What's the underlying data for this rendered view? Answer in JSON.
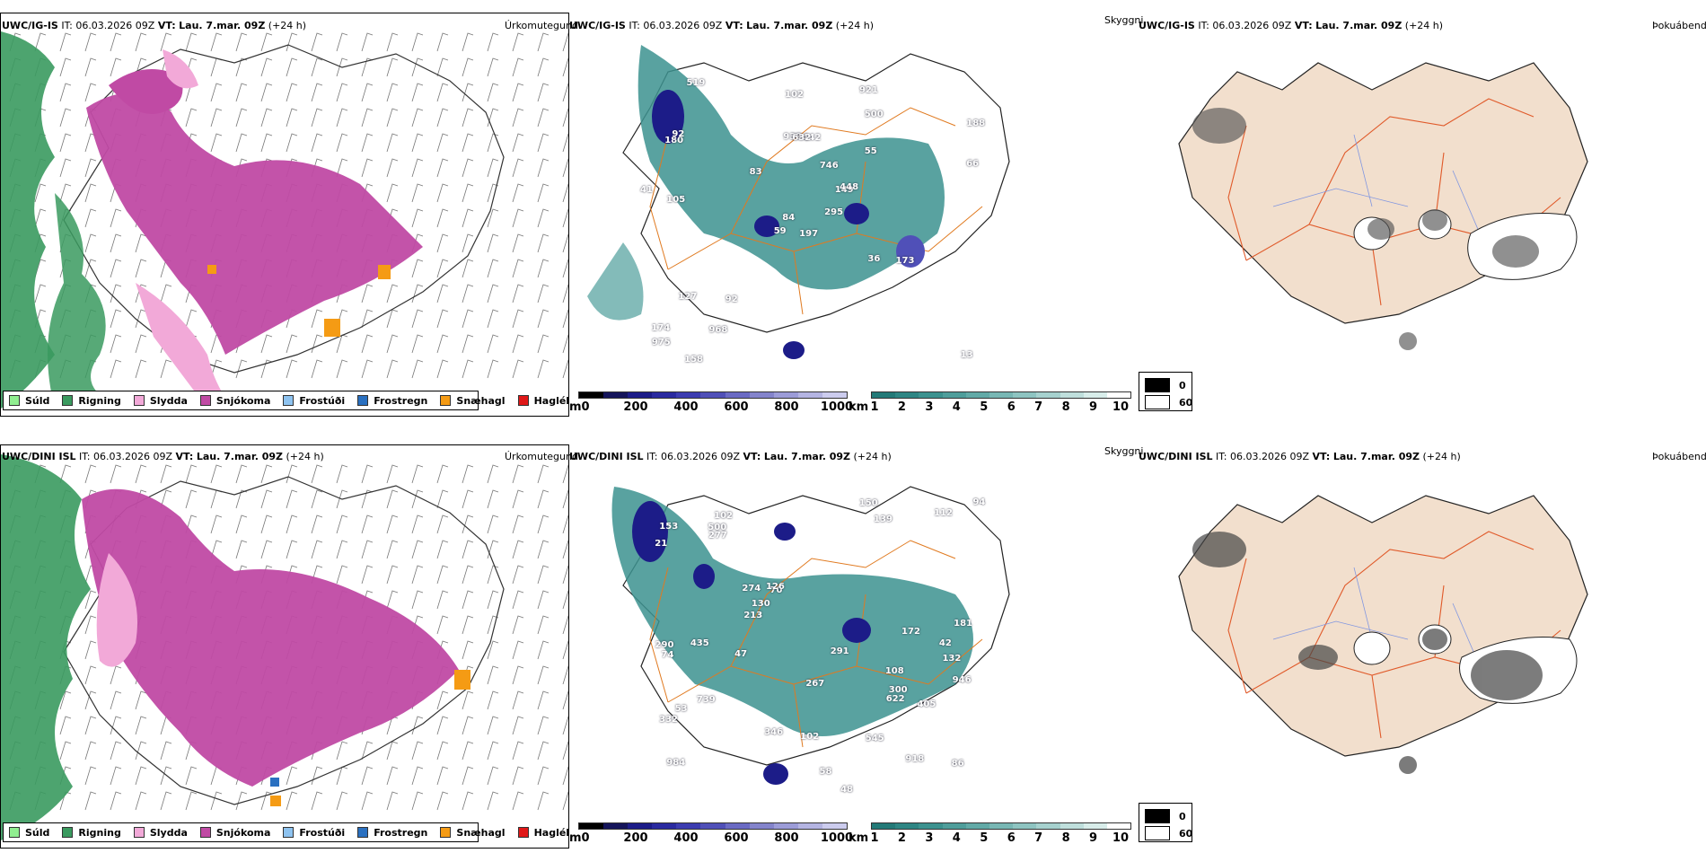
{
  "rows": [
    {
      "model": "UWC/IG-IS",
      "it": "IT: 06.03.2026 09Z",
      "vt_label": "VT:",
      "vt_value": "Lau. 7.mar. 09Z",
      "lead": "(+24 h)",
      "heights": [
        "197",
        "180",
        "84",
        "174",
        "149",
        "92",
        "921",
        "442",
        "500",
        "295",
        "519",
        "13",
        "105",
        "188",
        "59",
        "55",
        "158",
        "939",
        "746",
        "127",
        "83",
        "975",
        "968",
        "632",
        "448",
        "173",
        "92",
        "102",
        "41",
        "36",
        "66"
      ]
    },
    {
      "model": "UWC/DINI ISL",
      "it": "IT: 06.03.2026 09Z",
      "vt_label": "VT:",
      "vt_value": "Lau. 7.mar. 09Z",
      "lead": "(+24 h)",
      "heights": [
        "108",
        "132",
        "984",
        "102",
        "70",
        "918",
        "332",
        "139",
        "274",
        "48",
        "21",
        "290",
        "153",
        "86",
        "346",
        "181",
        "267",
        "291",
        "126",
        "739",
        "94",
        "112",
        "213",
        "946",
        "150",
        "500",
        "300",
        "74",
        "277",
        "172",
        "58",
        "545",
        "130",
        "47",
        "42",
        "405",
        "622",
        "435",
        "102",
        "53"
      ]
    }
  ],
  "panel_titles": {
    "precip": "Úrkomutegund",
    "visibility": "Skyggni",
    "fog": "Þokuábendi"
  },
  "precip_legend": [
    {
      "label": "Súld",
      "color": "#90ee90"
    },
    {
      "label": "Rigning",
      "color": "#3a9a5f"
    },
    {
      "label": "Slydda",
      "color": "#f2a9d8"
    },
    {
      "label": "Snjókoma",
      "color": "#c04aa4"
    },
    {
      "label": "Frostúði",
      "color": "#8ec3f0"
    },
    {
      "label": "Frostregn",
      "color": "#2a70c0"
    },
    {
      "label": "Snæhagl",
      "color": "#f59b14"
    },
    {
      "label": "Haglél",
      "color": "#e01818"
    }
  ],
  "ceiling_bar": {
    "unit": "m",
    "ticks": [
      "0",
      "200",
      "400",
      "600",
      "800",
      "1000"
    ],
    "colors": [
      "#000000",
      "#14145a",
      "#1c1c88",
      "#2a2aa0",
      "#3c3cb0",
      "#5050b8",
      "#6a6ac4",
      "#8484cc",
      "#9c9cd8",
      "#b4b4e2",
      "#ccccee"
    ]
  },
  "visibility_bar": {
    "unit": "km",
    "ticks": [
      "1",
      "2",
      "3",
      "4",
      "5",
      "6",
      "7",
      "8",
      "9",
      "10"
    ],
    "colors": [
      "#237a78",
      "#2e8684",
      "#3c928f",
      "#4f9e9b",
      "#62aaa7",
      "#78b7b4",
      "#8ec4c1",
      "#a6d1ce",
      "#bfdfdc",
      "#d8edea",
      "#ffffff"
    ]
  },
  "fog_legend": [
    {
      "label": "0",
      "color": "#000000"
    },
    {
      "label": "60",
      "color": "#ffffff"
    }
  ]
}
